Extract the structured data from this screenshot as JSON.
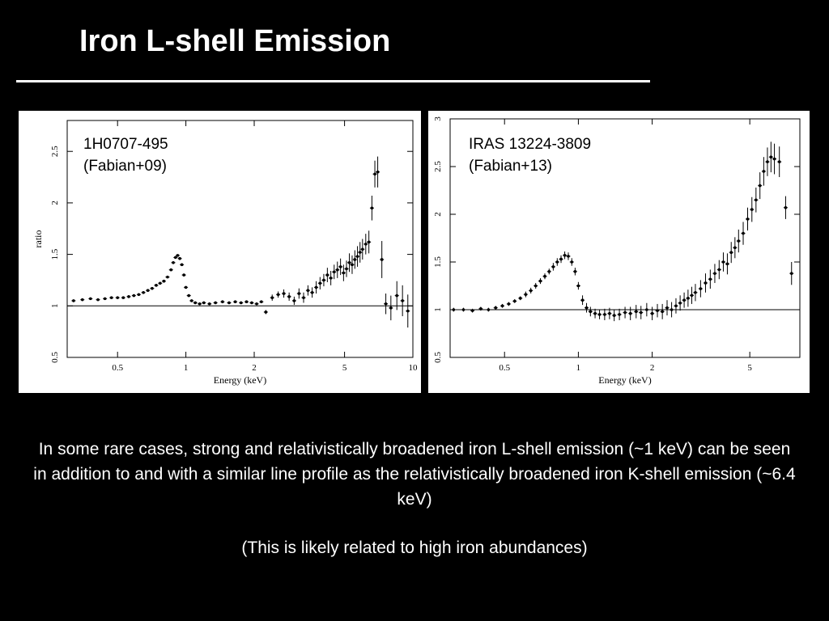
{
  "slide": {
    "title": "Iron L-shell Emission",
    "paragraph": "In some rare cases, strong and relativistically broadened iron L-shell emission (~1 keV) can be seen in addition to and with a similar line profile as the relativistically broadened iron K-shell emission (~6.4 keV)",
    "note": "(This is likely related to high iron abundances)"
  },
  "chart_data": [
    {
      "type": "scatter",
      "caption_line1": "1H0707-495",
      "caption_line2": "(Fabian+09)",
      "xlabel": "Energy (keV)",
      "ylabel": "ratio",
      "x_scale": "log",
      "xlim": [
        0.3,
        10
      ],
      "ylim": [
        0.5,
        2.8
      ],
      "x_ticks": [
        0.5,
        1,
        2,
        5,
        10
      ],
      "x_tick_labels": [
        "0.5",
        "1",
        "2",
        "5",
        "10"
      ],
      "y_ticks": [
        0.5,
        1,
        1.5,
        2,
        2.5
      ],
      "y_tick_labels": [
        "0.5",
        "1",
        "1.5",
        "2",
        "2.5"
      ],
      "reference_line": 1,
      "x": [
        0.32,
        0.35,
        0.38,
        0.41,
        0.44,
        0.47,
        0.5,
        0.53,
        0.56,
        0.59,
        0.62,
        0.65,
        0.68,
        0.71,
        0.74,
        0.77,
        0.8,
        0.83,
        0.86,
        0.88,
        0.9,
        0.92,
        0.94,
        0.96,
        0.98,
        1.0,
        1.03,
        1.06,
        1.1,
        1.15,
        1.2,
        1.27,
        1.35,
        1.45,
        1.55,
        1.65,
        1.75,
        1.85,
        1.95,
        2.05,
        2.15,
        2.25,
        2.4,
        2.55,
        2.7,
        2.85,
        3.0,
        3.15,
        3.3,
        3.45,
        3.6,
        3.75,
        3.9,
        4.05,
        4.2,
        4.35,
        4.5,
        4.65,
        4.8,
        4.95,
        5.1,
        5.25,
        5.4,
        5.55,
        5.7,
        5.85,
        6.0,
        6.2,
        6.4,
        6.6,
        6.8,
        7.0,
        7.3,
        7.6,
        8.0,
        8.5,
        9.0,
        9.5
      ],
      "y": [
        1.05,
        1.06,
        1.07,
        1.06,
        1.07,
        1.08,
        1.08,
        1.08,
        1.09,
        1.1,
        1.11,
        1.13,
        1.15,
        1.17,
        1.2,
        1.22,
        1.24,
        1.28,
        1.35,
        1.42,
        1.47,
        1.49,
        1.46,
        1.4,
        1.3,
        1.18,
        1.1,
        1.05,
        1.03,
        1.02,
        1.03,
        1.02,
        1.03,
        1.04,
        1.03,
        1.04,
        1.03,
        1.04,
        1.03,
        1.02,
        1.04,
        0.94,
        1.08,
        1.11,
        1.12,
        1.09,
        1.05,
        1.12,
        1.08,
        1.15,
        1.13,
        1.18,
        1.22,
        1.25,
        1.3,
        1.27,
        1.33,
        1.35,
        1.38,
        1.32,
        1.36,
        1.42,
        1.4,
        1.45,
        1.48,
        1.52,
        1.55,
        1.6,
        1.62,
        1.95,
        2.28,
        2.3,
        1.45,
        1.02,
        0.98,
        1.1,
        1.05,
        0.95
      ],
      "err": [
        0.01,
        0.01,
        0.01,
        0.01,
        0.01,
        0.01,
        0.01,
        0.01,
        0.01,
        0.01,
        0.01,
        0.01,
        0.01,
        0.01,
        0.01,
        0.01,
        0.01,
        0.01,
        0.01,
        0.01,
        0.01,
        0.01,
        0.01,
        0.01,
        0.01,
        0.01,
        0.01,
        0.01,
        0.01,
        0.01,
        0.01,
        0.01,
        0.01,
        0.01,
        0.01,
        0.01,
        0.01,
        0.01,
        0.01,
        0.01,
        0.01,
        0.02,
        0.03,
        0.03,
        0.04,
        0.04,
        0.04,
        0.05,
        0.05,
        0.05,
        0.05,
        0.06,
        0.06,
        0.06,
        0.07,
        0.07,
        0.07,
        0.08,
        0.08,
        0.08,
        0.08,
        0.09,
        0.09,
        0.09,
        0.1,
        0.1,
        0.1,
        0.1,
        0.11,
        0.12,
        0.13,
        0.15,
        0.18,
        0.1,
        0.12,
        0.14,
        0.15,
        0.16
      ]
    },
    {
      "type": "scatter",
      "caption_line1": "IRAS 13224-3809",
      "caption_line2": "(Fabian+13)",
      "xlabel": "Energy (keV)",
      "ylabel": "ratio",
      "x_scale": "log",
      "xlim": [
        0.3,
        8
      ],
      "ylim": [
        0.5,
        3.0
      ],
      "x_ticks": [
        0.5,
        1,
        2,
        5
      ],
      "x_tick_labels": [
        "0.5",
        "1",
        "2",
        "5"
      ],
      "y_ticks": [
        0.5,
        1,
        1.5,
        2,
        2.5,
        3
      ],
      "y_tick_labels": [
        "0.5",
        "1",
        "1.5",
        "2",
        "2.5",
        "3"
      ],
      "reference_line": 1,
      "x": [
        0.31,
        0.34,
        0.37,
        0.4,
        0.43,
        0.46,
        0.49,
        0.52,
        0.55,
        0.58,
        0.61,
        0.64,
        0.67,
        0.7,
        0.73,
        0.76,
        0.79,
        0.82,
        0.85,
        0.88,
        0.91,
        0.94,
        0.97,
        1.0,
        1.04,
        1.08,
        1.12,
        1.17,
        1.22,
        1.28,
        1.34,
        1.4,
        1.47,
        1.55,
        1.63,
        1.72,
        1.8,
        1.9,
        2.0,
        2.1,
        2.2,
        2.3,
        2.4,
        2.5,
        2.6,
        2.7,
        2.8,
        2.9,
        3.0,
        3.15,
        3.3,
        3.45,
        3.6,
        3.75,
        3.9,
        4.05,
        4.2,
        4.35,
        4.5,
        4.7,
        4.9,
        5.1,
        5.3,
        5.5,
        5.7,
        5.9,
        6.1,
        6.3,
        6.6,
        7.0,
        7.4
      ],
      "y": [
        1.0,
        1.0,
        0.99,
        1.01,
        1.0,
        1.02,
        1.04,
        1.06,
        1.09,
        1.12,
        1.16,
        1.2,
        1.25,
        1.3,
        1.35,
        1.4,
        1.45,
        1.5,
        1.53,
        1.57,
        1.56,
        1.5,
        1.4,
        1.25,
        1.1,
        1.02,
        0.98,
        0.96,
        0.95,
        0.95,
        0.96,
        0.94,
        0.95,
        0.97,
        0.96,
        0.98,
        0.97,
        1.0,
        0.96,
        0.99,
        0.98,
        1.02,
        1.0,
        1.04,
        1.07,
        1.1,
        1.12,
        1.15,
        1.18,
        1.22,
        1.28,
        1.32,
        1.38,
        1.42,
        1.5,
        1.48,
        1.6,
        1.65,
        1.72,
        1.8,
        1.95,
        2.05,
        2.15,
        2.3,
        2.45,
        2.55,
        2.6,
        2.58,
        2.55,
        2.07,
        1.38
      ],
      "err": [
        0.02,
        0.02,
        0.02,
        0.02,
        0.02,
        0.02,
        0.02,
        0.02,
        0.02,
        0.02,
        0.03,
        0.03,
        0.03,
        0.03,
        0.03,
        0.03,
        0.04,
        0.04,
        0.04,
        0.04,
        0.04,
        0.04,
        0.04,
        0.04,
        0.05,
        0.05,
        0.05,
        0.05,
        0.05,
        0.06,
        0.06,
        0.06,
        0.06,
        0.06,
        0.07,
        0.07,
        0.07,
        0.07,
        0.07,
        0.07,
        0.08,
        0.08,
        0.08,
        0.08,
        0.08,
        0.08,
        0.09,
        0.09,
        0.09,
        0.09,
        0.1,
        0.1,
        0.1,
        0.1,
        0.1,
        0.11,
        0.11,
        0.11,
        0.12,
        0.12,
        0.12,
        0.13,
        0.13,
        0.14,
        0.15,
        0.15,
        0.16,
        0.16,
        0.16,
        0.12,
        0.12
      ]
    }
  ]
}
